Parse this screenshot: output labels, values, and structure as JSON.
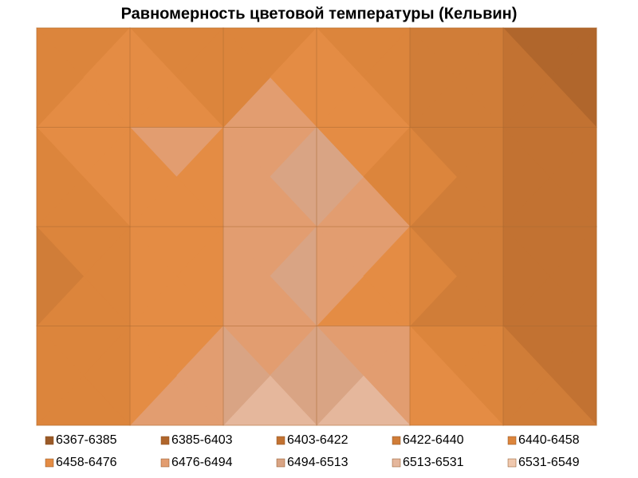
{
  "chart_data": {
    "type": "contour",
    "title": "Равномерность цветовой температуры (Кельвин)",
    "z": [
      [
        6440,
        6440,
        6440,
        6440,
        6440,
        6420,
        6380
      ],
      [
        6470,
        6490,
        6470,
        6500,
        6440,
        6420,
        6400
      ],
      [
        6430,
        6460,
        6480,
        6510,
        6450,
        6430,
        6400
      ],
      [
        6440,
        6450,
        6470,
        6490,
        6450,
        6420,
        6400
      ],
      [
        6440,
        6460,
        6520,
        6540,
        6510,
        6450,
        6430
      ]
    ],
    "grid": true,
    "series": [
      {
        "name": "6367-6385",
        "range": [
          6367,
          6385
        ],
        "color": "#9a5a28"
      },
      {
        "name": "6385-6403",
        "range": [
          6385,
          6403
        ],
        "color": "#b0662c"
      },
      {
        "name": "6403-6422",
        "range": [
          6403,
          6422
        ],
        "color": "#c27232"
      },
      {
        "name": "6422-6440",
        "range": [
          6422,
          6440
        ],
        "color": "#d07d38"
      },
      {
        "name": "6440-6458",
        "range": [
          6440,
          6458
        ],
        "color": "#dc853c"
      },
      {
        "name": "6458-6476",
        "range": [
          6458,
          6476
        ],
        "color": "#e48c44"
      },
      {
        "name": "6476-6494",
        "range": [
          6476,
          6494
        ],
        "color": "#e29d70"
      },
      {
        "name": "6494-6513",
        "range": [
          6494,
          6513
        ],
        "color": "#d9a484"
      },
      {
        "name": "6513-6531",
        "range": [
          6513,
          6531
        ],
        "color": "#e5b79c"
      },
      {
        "name": "6531-6549",
        "range": [
          6531,
          6549
        ],
        "color": "#f0c8ae"
      }
    ]
  }
}
